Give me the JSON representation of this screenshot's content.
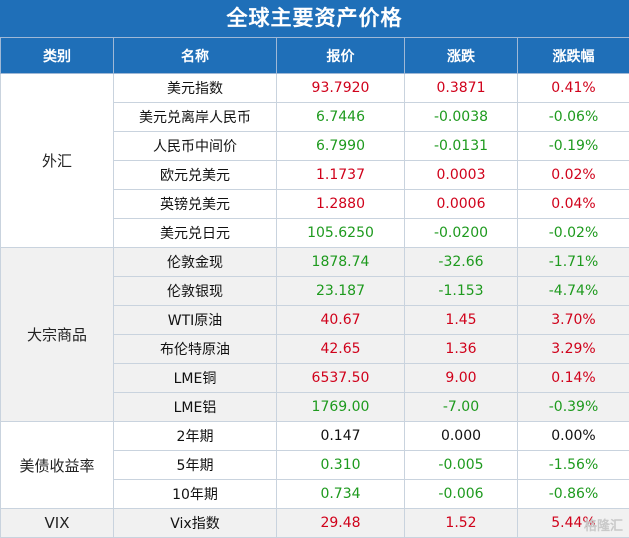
{
  "title": "全球主要资产价格",
  "headers": [
    "类别",
    "名称",
    "报价",
    "涨跌",
    "涨跌幅"
  ],
  "colors": {
    "header_bg": "#1f6fb8",
    "up": "#d0021b",
    "down": "#1e9a1e",
    "flat": "#111111"
  },
  "groups": [
    {
      "category": "外汇",
      "rows": [
        {
          "name": "美元指数",
          "price": "93.7920",
          "change": "0.3871",
          "pct": "0.41%",
          "dir": "up"
        },
        {
          "name": "美元兑离岸人民币",
          "price": "6.7446",
          "change": "-0.0038",
          "pct": "-0.06%",
          "dir": "down"
        },
        {
          "name": "人民币中间价",
          "price": "6.7990",
          "change": "-0.0131",
          "pct": "-0.19%",
          "dir": "down"
        },
        {
          "name": "欧元兑美元",
          "price": "1.1737",
          "change": "0.0003",
          "pct": "0.02%",
          "dir": "up"
        },
        {
          "name": "英镑兑美元",
          "price": "1.2880",
          "change": "0.0006",
          "pct": "0.04%",
          "dir": "up"
        },
        {
          "name": "美元兑日元",
          "price": "105.6250",
          "change": "-0.0200",
          "pct": "-0.02%",
          "dir": "down"
        }
      ]
    },
    {
      "category": "大宗商品",
      "rows": [
        {
          "name": "伦敦金现",
          "price": "1878.74",
          "change": "-32.66",
          "pct": "-1.71%",
          "dir": "down"
        },
        {
          "name": "伦敦银现",
          "price": "23.187",
          "change": "-1.153",
          "pct": "-4.74%",
          "dir": "down"
        },
        {
          "name": "WTI原油",
          "price": "40.67",
          "change": "1.45",
          "pct": "3.70%",
          "dir": "up"
        },
        {
          "name": "布伦特原油",
          "price": "42.65",
          "change": "1.36",
          "pct": "3.29%",
          "dir": "up"
        },
        {
          "name": "LME铜",
          "price": "6537.50",
          "change": "9.00",
          "pct": "0.14%",
          "dir": "up"
        },
        {
          "name": "LME铝",
          "price": "1769.00",
          "change": "-7.00",
          "pct": "-0.39%",
          "dir": "down"
        }
      ]
    },
    {
      "category": "美债收益率",
      "rows": [
        {
          "name": "2年期",
          "price": "0.147",
          "change": "0.000",
          "pct": "0.00%",
          "dir": "flat"
        },
        {
          "name": "5年期",
          "price": "0.310",
          "change": "-0.005",
          "pct": "-1.56%",
          "dir": "down"
        },
        {
          "name": "10年期",
          "price": "0.734",
          "change": "-0.006",
          "pct": "-0.86%",
          "dir": "down"
        }
      ]
    },
    {
      "category": "VIX",
      "rows": [
        {
          "name": "Vix指数",
          "price": "29.48",
          "change": "1.52",
          "pct": "5.44%",
          "dir": "up"
        }
      ]
    }
  ],
  "watermark": "格隆汇"
}
